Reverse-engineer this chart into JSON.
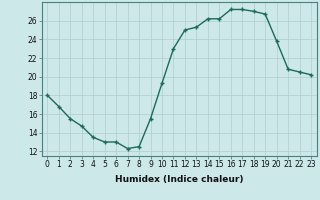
{
  "x": [
    0,
    1,
    2,
    3,
    4,
    5,
    6,
    7,
    8,
    9,
    10,
    11,
    12,
    13,
    14,
    15,
    16,
    17,
    18,
    19,
    20,
    21,
    22,
    23
  ],
  "y": [
    18,
    16.8,
    15.5,
    14.7,
    13.5,
    13.0,
    13.0,
    12.3,
    12.5,
    15.5,
    19.3,
    23.0,
    25.0,
    25.3,
    26.2,
    26.2,
    27.2,
    27.2,
    27.0,
    26.7,
    23.8,
    20.8,
    20.5,
    20.2
  ],
  "line_color": "#1a6b5a",
  "marker": "+",
  "marker_size": 3.5,
  "line_width": 1.0,
  "bg_color": "#cde8e8",
  "grid_color": "#b0cccc",
  "xlabel": "Humidex (Indice chaleur)",
  "xlim": [
    -0.5,
    23.5
  ],
  "ylim": [
    11.5,
    28
  ],
  "yticks": [
    12,
    14,
    16,
    18,
    20,
    22,
    24,
    26
  ],
  "xticks": [
    0,
    1,
    2,
    3,
    4,
    5,
    6,
    7,
    8,
    9,
    10,
    11,
    12,
    13,
    14,
    15,
    16,
    17,
    18,
    19,
    20,
    21,
    22,
    23
  ],
  "xtick_labels": [
    "0",
    "1",
    "2",
    "3",
    "4",
    "5",
    "6",
    "7",
    "8",
    "9",
    "10",
    "11",
    "12",
    "13",
    "14",
    "15",
    "16",
    "17",
    "18",
    "19",
    "20",
    "21",
    "22",
    "23"
  ],
  "tick_fontsize": 5.5,
  "xlabel_fontsize": 6.5,
  "spine_color": "#4a8080"
}
